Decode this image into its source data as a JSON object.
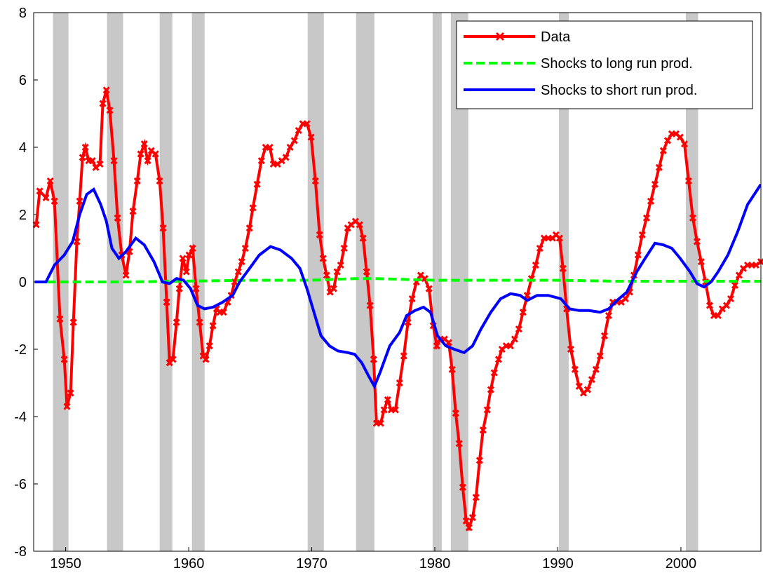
{
  "chart_data": {
    "type": "line",
    "xlim": [
      1947.4,
      2006.5
    ],
    "ylim": [
      -8,
      8
    ],
    "xticks": [
      1950,
      1960,
      1970,
      1980,
      1990,
      2000
    ],
    "yticks": [
      -8,
      -6,
      -4,
      -2,
      0,
      2,
      4,
      6,
      8
    ],
    "legend": "upper right",
    "recession_shading": [
      [
        1948.97,
        1950.23
      ],
      [
        1953.36,
        1954.67
      ],
      [
        1957.64,
        1958.67
      ],
      [
        1960.26,
        1961.29
      ],
      [
        1969.67,
        1970.98
      ],
      [
        1973.6,
        1975.09
      ],
      [
        1979.82,
        1980.56
      ],
      [
        1981.3,
        1982.72
      ],
      [
        1990.08,
        1990.88
      ],
      [
        2000.4,
        2001.4
      ]
    ],
    "shading_color": "#c8c8c8",
    "series": [
      {
        "name": "Data",
        "color": "#ff0000",
        "style": "solid",
        "markers": true,
        "x": [
          1947.61,
          1947.89,
          1948.4,
          1948.75,
          1949.09,
          1949.54,
          1949.89,
          1950.11,
          1950.4,
          1950.63,
          1950.91,
          1951.14,
          1951.37,
          1951.6,
          1951.88,
          1952.17,
          1952.45,
          1952.79,
          1953.02,
          1953.31,
          1953.59,
          1953.93,
          1954.22,
          1954.56,
          1954.9,
          1955.19,
          1955.47,
          1955.82,
          1956.1,
          1956.39,
          1956.67,
          1956.96,
          1957.3,
          1957.64,
          1957.92,
          1958.21,
          1958.44,
          1958.72,
          1959.01,
          1959.24,
          1959.52,
          1959.81,
          1960.03,
          1960.32,
          1960.6,
          1960.89,
          1961.17,
          1961.4,
          1961.69,
          1961.97,
          1962.26,
          1962.54,
          1962.83,
          1963.17,
          1963.45,
          1963.74,
          1964.03,
          1964.31,
          1964.6,
          1964.94,
          1965.22,
          1965.56,
          1965.91,
          1966.25,
          1966.59,
          1966.88,
          1967.22,
          1967.56,
          1967.9,
          1968.24,
          1968.59,
          1968.93,
          1969.27,
          1969.61,
          1969.95,
          1970.3,
          1970.64,
          1970.92,
          1971.21,
          1971.49,
          1971.78,
          1972.06,
          1972.35,
          1972.63,
          1972.92,
          1973.2,
          1973.55,
          1973.89,
          1974.17,
          1974.46,
          1974.74,
          1975.03,
          1975.26,
          1975.6,
          1975.88,
          1976.17,
          1976.45,
          1976.8,
          1977.14,
          1977.48,
          1977.82,
          1978.16,
          1978.51,
          1978.85,
          1979.19,
          1979.53,
          1979.87,
          1980.16,
          1980.44,
          1980.79,
          1981.13,
          1981.41,
          1981.7,
          1981.98,
          1982.27,
          1982.55,
          1982.78,
          1983.07,
          1983.35,
          1983.64,
          1983.92,
          1984.26,
          1984.55,
          1984.83,
          1985.18,
          1985.46,
          1985.8,
          1986.15,
          1986.49,
          1986.83,
          1987.17,
          1987.51,
          1987.86,
          1988.2,
          1988.54,
          1988.88,
          1989.22,
          1989.57,
          1989.85,
          1990.14,
          1990.42,
          1990.71,
          1991.05,
          1991.39,
          1991.73,
          1992.08,
          1992.42,
          1992.76,
          1993.1,
          1993.44,
          1993.79,
          1994.13,
          1994.47,
          1994.81,
          1995.15,
          1995.5,
          1995.84,
          1996.18,
          1996.52,
          1996.86,
          1997.21,
          1997.55,
          1997.89,
          1998.23,
          1998.57,
          1998.92,
          1999.26,
          1999.6,
          1999.94,
          2000.29,
          2000.63,
          2000.97,
          2001.31,
          2001.65,
          2002.0,
          2002.34,
          2002.68,
          2003.02,
          2003.36,
          2003.71,
          2004.05,
          2004.39,
          2004.73,
          2005.07,
          2005.42,
          2005.76,
          2006.1,
          2006.5
        ],
        "values": [
          1.7,
          2.7,
          2.5,
          3.0,
          2.4,
          -1.1,
          -2.3,
          -3.7,
          -3.3,
          -1.2,
          1.2,
          2.4,
          3.7,
          4.0,
          3.6,
          3.6,
          3.4,
          3.5,
          5.3,
          5.7,
          5.1,
          3.6,
          1.9,
          0.8,
          0.2,
          0.9,
          2.1,
          3.0,
          3.8,
          4.1,
          3.6,
          3.9,
          3.8,
          3.0,
          1.6,
          -0.6,
          -2.4,
          -2.3,
          -1.2,
          -0.2,
          0.7,
          0.3,
          0.8,
          1.0,
          -0.2,
          -1.2,
          -2.2,
          -2.3,
          -1.9,
          -1.3,
          -0.8,
          -0.9,
          -0.9,
          -0.6,
          -0.4,
          0.0,
          0.3,
          0.6,
          1.0,
          1.6,
          2.2,
          2.9,
          3.6,
          4.0,
          4.0,
          3.5,
          3.5,
          3.6,
          3.7,
          4.0,
          4.2,
          4.5,
          4.7,
          4.7,
          4.3,
          3.0,
          1.4,
          0.7,
          0.2,
          -0.3,
          -0.2,
          0.3,
          0.5,
          1.0,
          1.6,
          1.7,
          1.8,
          1.7,
          1.3,
          0.3,
          -0.7,
          -2.3,
          -4.2,
          -4.2,
          -3.8,
          -3.5,
          -3.8,
          -3.8,
          -3.0,
          -2.2,
          -1.2,
          -0.5,
          0.0,
          0.2,
          0.1,
          -0.2,
          -1.3,
          -1.9,
          -1.7,
          -1.7,
          -1.8,
          -2.6,
          -3.9,
          -4.8,
          -6.1,
          -7.1,
          -7.3,
          -7.0,
          -6.4,
          -5.3,
          -4.4,
          -3.8,
          -3.2,
          -2.7,
          -2.3,
          -2.0,
          -1.9,
          -1.9,
          -1.7,
          -1.4,
          -0.9,
          -0.4,
          0.1,
          0.5,
          1.0,
          1.3,
          1.3,
          1.3,
          1.4,
          1.3,
          0.4,
          -0.8,
          -2.0,
          -2.6,
          -3.1,
          -3.3,
          -3.2,
          -2.9,
          -2.6,
          -2.2,
          -1.6,
          -1.0,
          -0.6,
          -0.6,
          -0.6,
          -0.5,
          -0.3,
          0.2,
          0.8,
          1.4,
          1.9,
          2.4,
          2.9,
          3.4,
          3.9,
          4.2,
          4.4,
          4.4,
          4.3,
          4.1,
          3.0,
          1.9,
          1.2,
          0.6,
          0.0,
          -0.7,
          -1.0,
          -1.0,
          -0.8,
          -0.7,
          -0.5,
          -0.1,
          0.2,
          0.4,
          0.5,
          0.5,
          0.5,
          0.6
        ]
      },
      {
        "name": "Shocks to long run prod.",
        "color": "#00ff00",
        "style": "dashed",
        "markers": false,
        "x": [
          1947.49,
          1955,
          1965,
          1970,
          1973.5,
          1975,
          1980,
          1985,
          1990,
          1995,
          2000,
          2006.5
        ],
        "values": [
          0,
          0,
          0.05,
          0.05,
          0.1,
          0.1,
          0.05,
          0.05,
          0.05,
          0.02,
          0.02,
          0.02
        ]
      },
      {
        "name": "Shocks to short run prod.",
        "color": "#0000ff",
        "style": "solid",
        "markers": false,
        "x": [
          1947.49,
          1948.4,
          1949.09,
          1949.89,
          1950.57,
          1951.14,
          1951.71,
          1952.28,
          1952.85,
          1953.31,
          1953.76,
          1954.33,
          1954.9,
          1955.7,
          1956.39,
          1957.18,
          1957.87,
          1958.44,
          1959.01,
          1959.58,
          1960.15,
          1960.72,
          1961.29,
          1961.97,
          1962.77,
          1963.57,
          1964.14,
          1964.94,
          1965.74,
          1966.65,
          1967.45,
          1968.36,
          1969.04,
          1969.61,
          1970.18,
          1970.75,
          1971.44,
          1972.12,
          1972.92,
          1973.49,
          1974.06,
          1974.63,
          1975.09,
          1975.54,
          1976.34,
          1977.14,
          1977.71,
          1978.39,
          1979.08,
          1979.65,
          1980.22,
          1980.9,
          1981.58,
          1982.38,
          1983.07,
          1983.75,
          1984.55,
          1985.35,
          1986.15,
          1986.94,
          1987.51,
          1988.31,
          1989.22,
          1990.25,
          1990.94,
          1991.73,
          1992.53,
          1993.44,
          1994.13,
          1994.81,
          1995.61,
          1996.41,
          1997.09,
          1997.89,
          1998.57,
          1999.26,
          1999.94,
          2000.74,
          2001.31,
          2001.88,
          2002.45,
          2003.02,
          2003.82,
          2004.62,
          2005.42,
          2006.5
        ],
        "values": [
          0.0,
          0.0,
          0.5,
          0.8,
          1.2,
          2.0,
          2.6,
          2.75,
          2.3,
          1.8,
          1.0,
          0.7,
          0.9,
          1.3,
          1.1,
          0.6,
          0.0,
          -0.05,
          0.1,
          0.05,
          -0.2,
          -0.7,
          -0.8,
          -0.75,
          -0.6,
          -0.4,
          0.0,
          0.4,
          0.8,
          1.05,
          0.95,
          0.7,
          0.4,
          -0.2,
          -0.9,
          -1.6,
          -1.9,
          -2.05,
          -2.1,
          -2.15,
          -2.4,
          -2.8,
          -3.1,
          -2.7,
          -1.9,
          -1.5,
          -1.0,
          -0.85,
          -0.75,
          -0.9,
          -1.6,
          -1.9,
          -2.0,
          -2.1,
          -1.9,
          -1.4,
          -0.9,
          -0.5,
          -0.35,
          -0.4,
          -0.55,
          -0.4,
          -0.4,
          -0.5,
          -0.8,
          -0.85,
          -0.85,
          -0.9,
          -0.8,
          -0.55,
          -0.3,
          0.3,
          0.7,
          1.15,
          1.1,
          1.0,
          0.7,
          0.3,
          -0.05,
          -0.15,
          0.0,
          0.3,
          0.8,
          1.5,
          2.3,
          2.9
        ]
      }
    ]
  }
}
